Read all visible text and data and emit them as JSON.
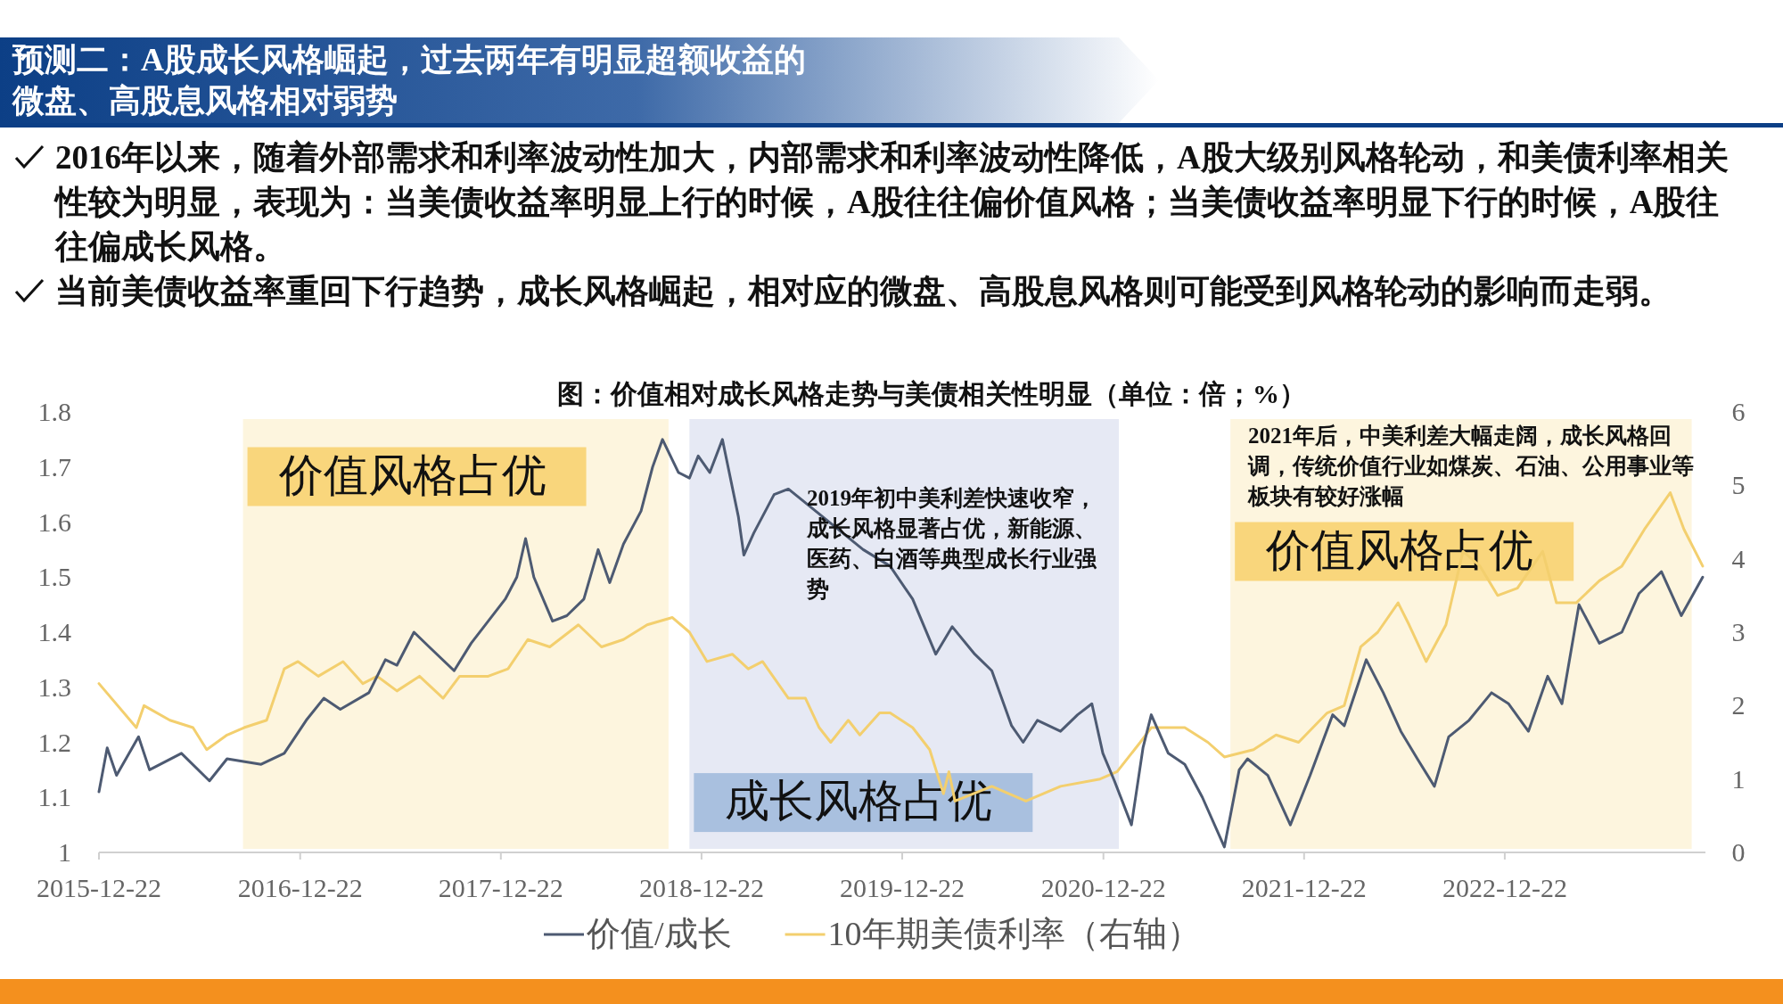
{
  "chart_data": {
    "type": "line",
    "title": "预测二：A股成长风格崛起，过去两年有明显超额收益的微盘、高股息风格相对弱势",
    "subtitle": "图：价值相对成长风格走势与美债相关性明显（单位：倍；%）",
    "annotations": [
      "2016年以来，随着外部需求和利率波动性加大，内部需求和利率波动性降低，A股大级别风格轮动，和美债利率相关性较为明显，表现为：当美债收益率明显上行的时候，A股往往偏价值风格；当美债收益率明显下行的时候，A股往往偏成长风格。",
      "当前美债收益率重回下行趋势，成长风格崛起，相对应的微盘、高股息风格则可能受到风格轮动的影响而走弱。",
      "2019年初中美利差快速收窄，成长风格显著占优，新能源、医药、白酒等典型成长行业强势",
      "2021年后，中美利差大幅走阔，成长风格回调，传统价值行业如煤炭、石油、公用事业等板块有较好涨幅"
    ],
    "series": [
      {
        "name": "价值/成长",
        "color": "#4d5a72",
        "x": [
          "2015-12-22",
          "2016-01-06",
          "2016-01-23",
          "2016-03-03",
          "2016-03-23",
          "2016-05-20",
          "2016-07-10",
          "2016-08-11",
          "2016-10-12",
          "2016-11-23",
          "2017-01-02",
          "2017-02-03",
          "2017-03-05",
          "2017-04-26",
          "2017-05-26",
          "2017-06-16",
          "2017-07-17",
          "2017-08-17",
          "2017-09-28",
          "2017-10-29",
          "2017-11-29",
          "2017-12-30",
          "2018-01-20",
          "2018-02-05",
          "2018-02-20",
          "2018-03-26",
          "2018-04-21",
          "2018-05-22",
          "2018-06-17",
          "2018-07-08",
          "2018-08-02",
          "2018-09-03",
          "2018-09-24",
          "2018-10-12",
          "2018-11-10",
          "2018-11-30",
          "2018-12-16",
          "2019-01-06",
          "2019-01-29",
          "2019-02-27",
          "2019-03-09",
          "2019-03-27",
          "2019-05-03",
          "2019-05-29",
          "2019-10-12",
          "2019-11-30",
          "2020-01-10",
          "2020-02-21",
          "2020-03-22",
          "2020-05-02",
          "2020-06-02",
          "2020-07-08",
          "2020-07-29",
          "2020-08-24",
          "2020-10-05",
          "2020-11-05",
          "2020-12-01",
          "2020-12-21",
          "2021-01-11",
          "2021-02-11",
          "2021-03-04",
          "2021-03-19",
          "2021-04-19",
          "2021-05-19",
          "2021-06-20",
          "2021-07-30",
          "2021-08-26",
          "2021-09-10",
          "2021-10-17",
          "2021-11-27",
          "2022-01-02",
          "2022-02-12",
          "2022-03-05",
          "2022-04-14",
          "2022-05-15",
          "2022-06-16",
          "2022-07-16",
          "2022-08-16",
          "2022-09-11",
          "2022-10-18",
          "2022-11-28",
          "2022-12-29",
          "2023-02-03",
          "2023-03-10",
          "2023-04-05",
          "2023-05-06",
          "2023-06-12",
          "2023-07-23",
          "2023-08-23",
          "2023-10-03",
          "2023-11-08",
          "2023-12-17"
        ],
        "values": [
          1.11,
          1.19,
          1.14,
          1.21,
          1.15,
          1.18,
          1.13,
          1.17,
          1.16,
          1.18,
          1.24,
          1.28,
          1.26,
          1.29,
          1.35,
          1.34,
          1.4,
          1.37,
          1.33,
          1.38,
          1.42,
          1.46,
          1.5,
          1.57,
          1.5,
          1.42,
          1.43,
          1.46,
          1.55,
          1.49,
          1.56,
          1.62,
          1.7,
          1.75,
          1.69,
          1.68,
          1.72,
          1.69,
          1.75,
          1.61,
          1.54,
          1.58,
          1.65,
          1.66,
          1.55,
          1.52,
          1.46,
          1.36,
          1.41,
          1.36,
          1.33,
          1.23,
          1.2,
          1.24,
          1.22,
          1.25,
          1.27,
          1.18,
          1.13,
          1.05,
          1.19,
          1.25,
          1.18,
          1.16,
          1.1,
          1.01,
          1.15,
          1.17,
          1.14,
          1.05,
          1.14,
          1.25,
          1.23,
          1.35,
          1.29,
          1.22,
          1.17,
          1.12,
          1.21,
          1.24,
          1.29,
          1.27,
          1.22,
          1.32,
          1.27,
          1.45,
          1.38,
          1.4,
          1.47,
          1.51,
          1.43,
          1.5
        ]
      },
      {
        "name": "10年期美债利率（右轴）",
        "color": "#f3cf6e",
        "axis": "y2",
        "x": [
          "2015-12-22",
          "2016-02-28",
          "2016-03-13",
          "2016-04-29",
          "2016-06-10",
          "2016-07-05",
          "2016-08-11",
          "2016-09-11",
          "2016-10-22",
          "2016-11-23",
          "2016-12-18",
          "2017-01-24",
          "2017-03-10",
          "2017-04-15",
          "2017-05-11",
          "2017-06-16",
          "2017-07-27",
          "2017-09-08",
          "2017-10-08",
          "2017-11-29",
          "2018-01-04",
          "2018-02-09",
          "2018-03-21",
          "2018-05-12",
          "2018-06-23",
          "2018-08-02",
          "2018-09-14",
          "2018-10-30",
          "2018-11-30",
          "2019-01-01",
          "2019-02-16",
          "2019-03-17",
          "2019-04-12",
          "2019-05-29",
          "2019-06-29",
          "2019-07-24",
          "2019-08-14",
          "2019-09-15",
          "2019-10-06",
          "2019-11-11",
          "2019-11-30",
          "2020-01-10",
          "2020-02-10",
          "2020-03-06",
          "2020-03-16",
          "2020-03-27",
          "2020-06-02",
          "2020-08-03",
          "2020-10-05",
          "2020-12-16",
          "2021-01-16",
          "2021-02-27",
          "2021-03-19",
          "2021-05-19",
          "2021-06-30",
          "2021-07-30",
          "2021-09-21",
          "2021-11-01",
          "2021-12-12",
          "2022-02-02",
          "2022-03-05",
          "2022-04-04",
          "2022-05-05",
          "2022-06-11",
          "2022-07-01",
          "2022-08-01",
          "2022-09-06",
          "2022-10-07",
          "2022-11-07",
          "2022-12-09",
          "2023-01-14",
          "2023-03-01",
          "2023-03-26",
          "2023-05-01",
          "2023-06-12",
          "2023-07-23",
          "2023-09-02",
          "2023-10-19",
          "2023-11-13",
          "2023-12-17"
        ],
        "values": [
          2.3,
          1.7,
          2.0,
          1.8,
          1.7,
          1.4,
          1.6,
          1.7,
          1.8,
          2.5,
          2.6,
          2.4,
          2.6,
          2.3,
          2.4,
          2.2,
          2.4,
          2.1,
          2.4,
          2.4,
          2.5,
          2.9,
          2.8,
          3.1,
          2.8,
          2.9,
          3.1,
          3.2,
          3.0,
          2.6,
          2.7,
          2.5,
          2.6,
          2.1,
          2.1,
          1.7,
          1.5,
          1.8,
          1.6,
          1.9,
          1.9,
          1.7,
          1.4,
          0.8,
          1.1,
          0.7,
          0.9,
          0.7,
          0.9,
          1.0,
          1.1,
          1.5,
          1.7,
          1.7,
          1.5,
          1.3,
          1.4,
          1.6,
          1.5,
          1.9,
          2.0,
          2.8,
          3.0,
          3.4,
          3.1,
          2.6,
          3.1,
          4.1,
          3.9,
          3.5,
          3.6,
          4.1,
          3.4,
          3.4,
          3.7,
          3.9,
          4.4,
          4.9,
          4.4,
          3.9
        ]
      }
    ],
    "xlim": [
      "2015-12-22",
      "2023-12-22"
    ],
    "xticks": [
      "2015-12-22",
      "2016-12-22",
      "2017-12-22",
      "2018-12-22",
      "2019-12-22",
      "2020-12-22",
      "2021-12-22",
      "2022-12-22"
    ],
    "ylim": [
      1,
      1.8
    ],
    "yticks": [
      1,
      1.1,
      1.2,
      1.3,
      1.4,
      1.5,
      1.6,
      1.7,
      1.8
    ],
    "y2lim": [
      0,
      6
    ],
    "y2ticks": [
      0,
      1,
      2,
      3,
      4,
      5,
      6
    ],
    "bands": [
      {
        "axis": "x",
        "from": "2016-09-09",
        "to": "2018-10-23",
        "label": "价值风格占优",
        "color": "#fdf5de"
      },
      {
        "axis": "x",
        "from": "2018-11-30",
        "to": "2021-01-19",
        "label": "成长风格占优",
        "color": "#e6e9f4"
      },
      {
        "axis": "x",
        "from": "2021-08-10",
        "to": "2023-11-27",
        "label": "价值风格占优",
        "color": "#fdf5de"
      }
    ],
    "grid": false,
    "legend": "bottom",
    "marker": "none",
    "line_style": "solid"
  }
}
